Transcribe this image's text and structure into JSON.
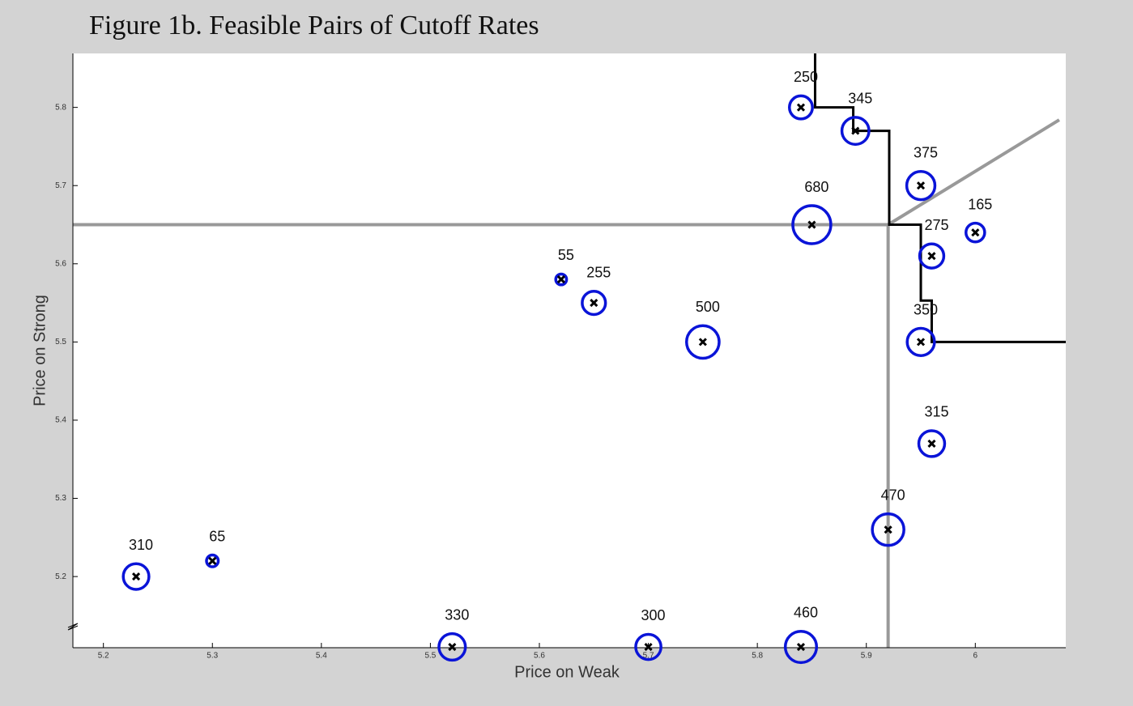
{
  "chart_data": {
    "type": "bubble",
    "title": "Figure 1b. Feasible Pairs of Cutoff Rates",
    "xlabel": "Price on Weak",
    "ylabel": "Price on Strong",
    "xlim": [
      5.172,
      6.083
    ],
    "ylim": [
      5.109,
      5.869
    ],
    "xticks": [
      5.2,
      5.3,
      5.4,
      5.5,
      5.6,
      5.7,
      5.8,
      5.9,
      6
    ],
    "yticks": [
      5.2,
      5.3,
      5.4,
      5.5,
      5.6,
      5.7,
      5.8
    ],
    "points": {
      "color": "#0a14d8",
      "x": [
        5.23,
        5.3,
        5.52,
        5.7,
        5.84,
        5.62,
        5.65,
        5.75,
        5.84,
        5.89,
        5.85,
        5.95,
        6.0,
        5.96,
        5.95,
        5.96,
        5.92
      ],
      "y": [
        5.2,
        5.22,
        5.11,
        5.11,
        5.11,
        5.58,
        5.55,
        5.5,
        5.8,
        5.77,
        5.65,
        5.7,
        5.64,
        5.61,
        5.5,
        5.37,
        5.26
      ],
      "size": [
        310,
        65,
        330,
        300,
        460,
        55,
        255,
        500,
        250,
        345,
        680,
        375,
        165,
        275,
        350,
        315,
        470
      ]
    },
    "lines": [
      {
        "color": "#999999",
        "x": [
          5.172,
          5.92
        ],
        "y": [
          5.65,
          5.65
        ]
      },
      {
        "color": "#999999",
        "x": [
          5.92,
          5.92
        ],
        "y": [
          5.109,
          5.65
        ]
      },
      {
        "color": "#999999",
        "x": [
          5.92,
          6.077
        ],
        "y": [
          5.65,
          5.784
        ]
      },
      {
        "color": "#000000",
        "x": [
          5.853,
          5.853,
          5.888,
          5.888,
          5.921,
          5.921,
          5.95,
          5.95,
          5.96,
          5.96,
          6.083
        ],
        "y": [
          5.869,
          5.8,
          5.8,
          5.77,
          5.77,
          5.65,
          5.65,
          5.553,
          5.553,
          5.5,
          5.5
        ]
      }
    ]
  }
}
